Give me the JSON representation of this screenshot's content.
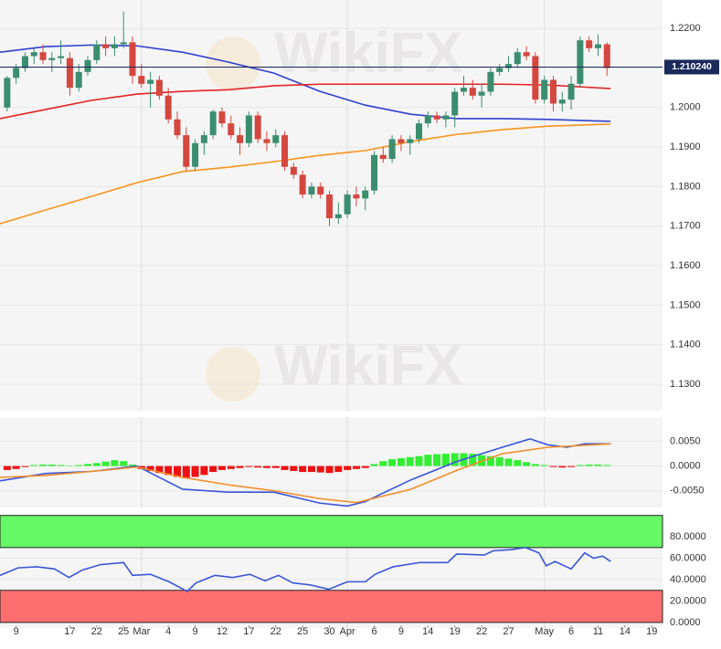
{
  "chart_data": [
    {
      "type": "candlestick",
      "watermark": "WikiFX",
      "xlim": [
        -0.8,
        73.2
      ],
      "ylim": [
        1.1233,
        1.2272
      ],
      "yticks": [
        {
          "value": 1.22,
          "label": "1.2200"
        },
        {
          "value": 1.21,
          "label": "1.2100"
        },
        {
          "value": 1.2,
          "label": "1.2000"
        },
        {
          "value": 1.19,
          "label": "1.1900"
        },
        {
          "value": 1.18,
          "label": "1.1800"
        },
        {
          "value": 1.17,
          "label": "1.1700"
        },
        {
          "value": 1.16,
          "label": "1.1600"
        },
        {
          "value": 1.15,
          "label": "1.1500"
        },
        {
          "value": 1.14,
          "label": "1.1400"
        },
        {
          "value": 1.13,
          "label": "1.1300"
        }
      ],
      "up_color": "#3b8d6f",
      "down_color": "#d4473f",
      "candles": {
        "x": [
          0,
          1,
          2,
          3,
          4,
          5,
          6,
          7,
          8,
          9,
          10,
          11,
          12,
          13,
          14,
          15,
          16,
          17,
          18,
          19,
          20,
          21,
          22,
          23,
          24,
          25,
          26,
          27,
          28,
          29,
          30,
          31,
          32,
          33,
          34,
          35,
          36,
          37,
          38,
          39,
          40,
          41,
          42,
          43,
          44,
          45,
          46,
          47,
          48,
          49,
          50,
          51,
          52,
          53,
          54,
          55,
          56,
          57,
          58,
          59,
          60,
          61,
          62,
          63,
          64,
          65,
          66,
          67
        ],
        "open": [
          1.2,
          1.2075,
          1.21,
          1.213,
          1.214,
          1.212,
          1.2125,
          1.2125,
          1.205,
          1.209,
          1.212,
          1.216,
          1.215,
          1.216,
          1.2165,
          1.208,
          1.206,
          1.207,
          1.203,
          1.197,
          1.193,
          1.185,
          1.191,
          1.193,
          1.199,
          1.196,
          1.193,
          1.191,
          1.198,
          1.192,
          1.191,
          1.193,
          1.185,
          1.183,
          1.178,
          1.18,
          1.178,
          1.172,
          1.173,
          1.178,
          1.177,
          1.179,
          1.188,
          1.187,
          1.192,
          1.191,
          1.192,
          1.196,
          1.198,
          1.197,
          1.198,
          1.204,
          1.205,
          1.203,
          1.204,
          1.209,
          1.21,
          1.211,
          1.214,
          1.213,
          1.202,
          1.207,
          1.201,
          1.202,
          1.206,
          1.217,
          1.215,
          1.216
        ],
        "high": [
          1.208,
          1.211,
          1.214,
          1.215,
          1.216,
          1.214,
          1.217,
          1.214,
          1.211,
          1.213,
          1.217,
          1.218,
          1.218,
          1.2243,
          1.218,
          1.211,
          1.209,
          1.208,
          1.205,
          1.199,
          1.195,
          1.192,
          1.194,
          1.1995,
          1.2,
          1.198,
          1.195,
          1.199,
          1.199,
          1.194,
          1.1945,
          1.194,
          1.186,
          1.184,
          1.181,
          1.181,
          1.179,
          1.176,
          1.179,
          1.18,
          1.18,
          1.189,
          1.19,
          1.193,
          1.193,
          1.193,
          1.197,
          1.199,
          1.199,
          1.199,
          1.205,
          1.208,
          1.207,
          1.206,
          1.21,
          1.211,
          1.213,
          1.215,
          1.2155,
          1.214,
          1.208,
          1.208,
          1.204,
          1.208,
          1.218,
          1.218,
          1.2185,
          1.2165
        ],
        "low": [
          1.199,
          1.206,
          1.209,
          1.211,
          1.211,
          1.209,
          1.211,
          1.203,
          1.204,
          1.208,
          1.211,
          1.213,
          1.213,
          1.215,
          1.206,
          1.205,
          1.2,
          1.202,
          1.196,
          1.192,
          1.184,
          1.184,
          1.188,
          1.192,
          1.195,
          1.192,
          1.188,
          1.19,
          1.191,
          1.189,
          1.19,
          1.184,
          1.182,
          1.177,
          1.177,
          1.177,
          1.17,
          1.1705,
          1.172,
          1.175,
          1.174,
          1.178,
          1.186,
          1.186,
          1.189,
          1.188,
          1.191,
          1.195,
          1.196,
          1.195,
          1.195,
          1.203,
          1.202,
          1.2,
          1.203,
          1.208,
          1.209,
          1.21,
          1.212,
          1.201,
          1.201,
          1.199,
          1.199,
          1.1995,
          1.205,
          1.214,
          1.213,
          1.208
        ],
        "close": [
          1.2075,
          1.21,
          1.213,
          1.214,
          1.212,
          1.2125,
          1.213,
          1.205,
          1.209,
          1.212,
          1.216,
          1.215,
          1.216,
          1.2165,
          1.208,
          1.206,
          1.207,
          1.203,
          1.197,
          1.193,
          1.185,
          1.191,
          1.193,
          1.199,
          1.196,
          1.193,
          1.191,
          1.198,
          1.192,
          1.191,
          1.193,
          1.185,
          1.183,
          1.178,
          1.18,
          1.178,
          1.172,
          1.173,
          1.178,
          1.177,
          1.179,
          1.188,
          1.187,
          1.192,
          1.191,
          1.192,
          1.196,
          1.198,
          1.197,
          1.198,
          1.204,
          1.205,
          1.203,
          1.204,
          1.209,
          1.21,
          1.211,
          1.214,
          1.213,
          1.202,
          1.207,
          1.201,
          1.202,
          1.206,
          1.217,
          1.215,
          1.216,
          1.21
        ]
      },
      "lines": [
        {
          "color": "#2f3fd0",
          "x": [
            -0.8,
            4.3,
            9.4,
            14.5,
            19.6,
            24.7,
            29.8,
            34.9,
            40.0,
            45.1,
            50.2,
            55.3,
            60.4,
            67.4
          ],
          "values": [
            1.214,
            1.2154,
            1.2158,
            1.2156,
            1.214,
            1.2115,
            1.2087,
            1.2041,
            1.2006,
            1.1983,
            1.1972,
            1.1972,
            1.197,
            1.1965
          ]
        },
        {
          "color": "#e52222",
          "x": [
            -0.8,
            4.3,
            9.4,
            14.5,
            19.6,
            24.7,
            29.8,
            34.9,
            40.0,
            45.1,
            50.2,
            55.3,
            60.4,
            67.4
          ],
          "values": [
            1.1972,
            1.1995,
            1.2018,
            1.2034,
            1.2041,
            1.2045,
            1.2055,
            1.2059,
            1.2059,
            1.2059,
            1.2059,
            1.2059,
            1.2057,
            1.2048
          ]
        },
        {
          "color": "#f7941d",
          "x": [
            -0.8,
            4.3,
            9.4,
            14.5,
            19.6,
            24.7,
            29.8,
            34.9,
            40.0,
            45.1,
            50.2,
            55.3,
            60.4,
            67.4
          ],
          "values": [
            1.1706,
            1.1741,
            1.1775,
            1.181,
            1.1838,
            1.1849,
            1.1863,
            1.1879,
            1.1891,
            1.1914,
            1.1932,
            1.1944,
            1.1953,
            1.1958
          ]
        }
      ],
      "last_price": {
        "value": 1.21024,
        "label": "1.210240",
        "color": "#1b2a5c"
      }
    },
    {
      "type": "macd",
      "xlim": [
        -0.8,
        73.2
      ],
      "ylim": [
        -0.0084,
        0.0099
      ],
      "yticks": [
        {
          "value": 0.005,
          "label": "0.0050"
        },
        {
          "value": 0,
          "label": "0.0000"
        },
        {
          "value": -0.005,
          "label": "-0.0050"
        }
      ],
      "up_color": "#33ee33",
      "down_color": "#ee1111",
      "histogram": {
        "x": [
          0,
          1,
          2,
          3,
          4,
          5,
          6,
          7,
          8,
          9,
          10,
          11,
          12,
          13,
          14,
          15,
          16,
          17,
          18,
          19,
          20,
          21,
          22,
          23,
          24,
          25,
          26,
          27,
          28,
          29,
          30,
          31,
          32,
          33,
          34,
          35,
          36,
          37,
          38,
          39,
          40,
          41,
          42,
          43,
          44,
          45,
          46,
          47,
          48,
          49,
          50,
          51,
          52,
          53,
          54,
          55,
          56,
          57,
          58,
          59,
          60,
          61,
          62,
          63,
          64,
          65,
          66,
          67
        ],
        "values": [
          -0.0008,
          -0.0006,
          -0.0002,
          0.0002,
          0.0003,
          0.0003,
          0.0002,
          0.0001,
          0.0002,
          0.0004,
          0.0006,
          0.0009,
          0.0012,
          0.001,
          0.0003,
          -0.0006,
          -0.001,
          -0.0014,
          -0.0018,
          -0.0022,
          -0.0025,
          -0.0022,
          -0.0018,
          -0.0012,
          -0.0008,
          -0.0006,
          -0.0004,
          -0.0002,
          -0.0003,
          -0.0004,
          -0.0004,
          -0.0008,
          -0.001,
          -0.0012,
          -0.0012,
          -0.0013,
          -0.0014,
          -0.0012,
          -0.0008,
          -0.0006,
          -0.0004,
          0.0004,
          0.001,
          0.0014,
          0.0016,
          0.0018,
          0.002,
          0.0023,
          0.0024,
          0.0025,
          0.0026,
          0.0026,
          0.0025,
          0.0022,
          0.002,
          0.0018,
          0.0015,
          0.0012,
          0.0008,
          0.0004,
          0.0002,
          -0.0002,
          -0.0003,
          -0.0002,
          0.0002,
          0.0003,
          0.0003,
          0.0002
        ]
      },
      "series": [
        {
          "color": "#3a55d8",
          "x": [
            -0.8,
            4.3,
            9.4,
            14.5,
            19.6,
            24.7,
            29.8,
            34.9,
            38.0,
            40.0,
            45.1,
            50.2,
            55.3,
            58.4,
            60.4,
            62.5,
            64.5,
            67.4
          ],
          "values": [
            -0.003,
            -0.0015,
            -0.0011,
            0.0,
            -0.0047,
            -0.0053,
            -0.0053,
            -0.0075,
            -0.0081,
            -0.0072,
            -0.0028,
            0.0009,
            0.0038,
            0.0055,
            0.0043,
            0.0038,
            0.0045,
            0.0045
          ]
        },
        {
          "color": "#f28c28",
          "x": [
            -0.8,
            4.3,
            9.4,
            14.5,
            19.6,
            24.7,
            29.8,
            34.9,
            39.0,
            45.1,
            50.2,
            55.3,
            60.4,
            64.5,
            67.4
          ],
          "values": [
            -0.0023,
            -0.0019,
            -0.0011,
            -0.0002,
            -0.0023,
            -0.0038,
            -0.005,
            -0.0066,
            -0.0074,
            -0.0047,
            -0.0009,
            0.0025,
            0.0038,
            0.0042,
            0.0045
          ]
        }
      ]
    },
    {
      "type": "line",
      "xlim": [
        -0.8,
        73.2
      ],
      "ylim": [
        -5.2,
        100.6
      ],
      "yticks": [
        {
          "value": 80,
          "label": "80.0000"
        },
        {
          "value": 60,
          "label": "60.0000"
        },
        {
          "value": 40,
          "label": "40.0000"
        },
        {
          "value": 20,
          "label": "20.0000"
        },
        {
          "value": 0,
          "label": "0.0000"
        }
      ],
      "xticks": [
        {
          "value": 1,
          "label": "9"
        },
        {
          "value": 7,
          "label": "17"
        },
        {
          "value": 10,
          "label": "22"
        },
        {
          "value": 13,
          "label": "25"
        },
        {
          "value": 15,
          "label": "Mar"
        },
        {
          "value": 18,
          "label": "4"
        },
        {
          "value": 21,
          "label": "9"
        },
        {
          "value": 24,
          "label": "12"
        },
        {
          "value": 27,
          "label": "17"
        },
        {
          "value": 30,
          "label": "22"
        },
        {
          "value": 33,
          "label": "25"
        },
        {
          "value": 36,
          "label": "30"
        },
        {
          "value": 38,
          "label": "Apr"
        },
        {
          "value": 41,
          "label": "6"
        },
        {
          "value": 44,
          "label": "9"
        },
        {
          "value": 47,
          "label": "14"
        },
        {
          "value": 50,
          "label": "19"
        },
        {
          "value": 53,
          "label": "22"
        },
        {
          "value": 56,
          "label": "27"
        },
        {
          "value": 60,
          "label": "May"
        },
        {
          "value": 63,
          "label": "6"
        },
        {
          "value": 66,
          "label": "11"
        },
        {
          "value": 69,
          "label": "14"
        },
        {
          "value": 72,
          "label": "19"
        }
      ],
      "bands": [
        {
          "from": 70,
          "to": 100,
          "color": "#66f866"
        },
        {
          "from": 0,
          "to": 30,
          "color": "#ff6e6e"
        }
      ],
      "series": [
        {
          "color": "#3a55d8",
          "x": [
            -0.8,
            1.2,
            3.3,
            5.3,
            6.9,
            8.4,
            10.4,
            13.0,
            14.0,
            16.0,
            18.1,
            20.1,
            21.1,
            23.2,
            25.2,
            27.1,
            28.8,
            30.3,
            31.9,
            33.9,
            35.9,
            38.0,
            40.0,
            41.1,
            43.1,
            46.1,
            49.2,
            50.2,
            53.3,
            54.3,
            56.3,
            57.9,
            59.4,
            60.2,
            61.2,
            63.0,
            64.5,
            65.5,
            66.5,
            67.4
          ],
          "values": [
            44,
            51,
            52,
            50,
            42,
            49,
            54,
            56,
            44,
            45,
            38,
            29,
            37,
            44,
            42,
            45,
            39,
            44,
            37,
            35,
            31,
            38,
            38,
            45,
            52,
            56,
            56,
            64,
            63,
            67,
            68,
            70,
            65,
            53,
            57,
            50,
            65,
            60,
            62,
            57
          ]
        }
      ]
    }
  ]
}
